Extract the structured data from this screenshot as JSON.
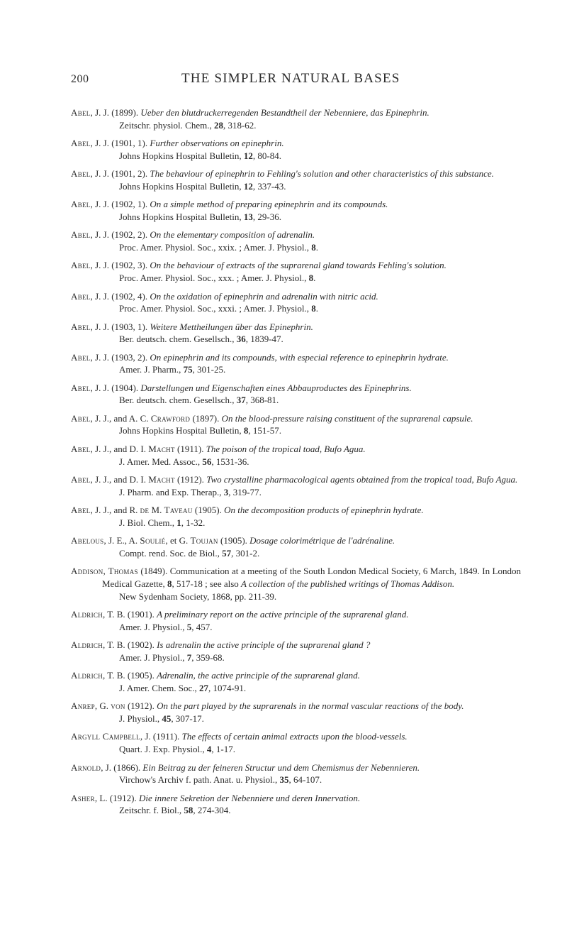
{
  "header": {
    "page_number": "200",
    "running_title": "THE SIMPLER NATURAL BASES"
  },
  "entries": [
    {
      "author_sc": "Abel",
      "rest": ", J. J. (1899). ",
      "italic": "Ueber den blutdruckerregenden Bestandtheil der Nebenniere, das Epinephrin.",
      "citation_pre": "Zeitschr. physiol. Chem., ",
      "citation_bold": "28",
      "citation_post": ", 318-62."
    },
    {
      "author_sc": "Abel",
      "rest": ", J. J. (1901, 1). ",
      "italic": "Further observations on epinephrin.",
      "citation_pre": "Johns Hopkins Hospital Bulletin, ",
      "citation_bold": "12",
      "citation_post": ", 80-84."
    },
    {
      "author_sc": "Abel",
      "rest": ", J. J. (1901, 2). ",
      "italic": "The behaviour of epinephrin to Fehling's solution and other characteristics of this substance.",
      "citation_pre": "Johns Hopkins Hospital Bulletin, ",
      "citation_bold": "12",
      "citation_post": ", 337-43."
    },
    {
      "author_sc": "Abel",
      "rest": ", J. J. (1902, 1). ",
      "italic": "On a simple method of preparing epinephrin and its compounds.",
      "citation_pre": "Johns Hopkins Hospital Bulletin, ",
      "citation_bold": "13",
      "citation_post": ", 29-36."
    },
    {
      "author_sc": "Abel",
      "rest": ", J.  J. (1902, 2). ",
      "italic": "On the elementary composition of adrenalin.",
      "citation_pre": "Proc. Amer. Physiol. Soc., xxix. ; Amer. J. Physiol., ",
      "citation_bold": "8",
      "citation_post": "."
    },
    {
      "author_sc": "Abel",
      "rest": ", J. J. (1902, 3). ",
      "italic": "On the behaviour of extracts of the suprarenal gland towards Fehling's solution.",
      "citation_pre": "Proc. Amer. Physiol. Soc., xxx. ; Amer. J. Physiol., ",
      "citation_bold": "8",
      "citation_post": "."
    },
    {
      "author_sc": "Abel",
      "rest": ", J. J. (1902, 4). ",
      "italic": "On the oxidation of epinephrin and adrenalin with nitric acid.",
      "citation_pre": "Proc. Amer. Physiol. Soc., xxxi. ; Amer. J. Physiol., ",
      "citation_bold": "8",
      "citation_post": "."
    },
    {
      "author_sc": "Abel",
      "rest": ", J. J. (1903, 1). ",
      "italic": "Weitere Mettheilungen über das Epinephrin.",
      "citation_pre": "Ber. deutsch. chem. Gesellsch., ",
      "citation_bold": "36",
      "citation_post": ", 1839-47."
    },
    {
      "author_sc": "Abel",
      "rest": ", J. J. (1903, 2). ",
      "italic": "On epinephrin and its compounds, with especial reference to epinephrin hydrate.",
      "citation_pre": "Amer. J. Pharm., ",
      "citation_bold": "75",
      "citation_post": ", 301-25."
    },
    {
      "author_sc": "Abel",
      "rest": ", J. J. (1904). ",
      "italic": "Darstellungen und Eigenschaften eines Abbauproductes des Epine­phrins.",
      "citation_pre": "Ber. deutsch. chem. Gesellsch., ",
      "citation_bold": "37",
      "citation_post": ", 368-81."
    },
    {
      "author_sc": "Abel",
      "rest": ", J. J., and A. C. ",
      "author2_sc": "Crawford",
      "rest2": " (1897). ",
      "italic": "On the blood-pressure raising constituent of the suprarenal capsule.",
      "citation_pre": "Johns Hopkins Hospital Bulletin, ",
      "citation_bold": "8",
      "citation_post": ", 151-57."
    },
    {
      "author_sc": "Abel",
      "rest": ", J. J., and D. I. ",
      "author2_sc": "Macht",
      "rest2": " (1911). ",
      "italic": "The poison of the tropical toad, Bufo Agua.",
      "citation_pre": "J. Amer. Med. Assoc., ",
      "citation_bold": "56",
      "citation_post": ", 1531-36."
    },
    {
      "author_sc": "Abel",
      "rest": ", J. J., and D. I. ",
      "author2_sc": "Macht",
      "rest2": " (1912). ",
      "italic": "Two crystalline pharmacological agents ob­tained from the tropical toad, Bufo Agua.",
      "citation_pre": "J. Pharm. and Exp. Therap., ",
      "citation_bold": "3",
      "citation_post": ", 319-77."
    },
    {
      "author_sc": "Abel",
      "rest": ", J. J., and R. ",
      "author2_sc": "de",
      "rest2": " M. ",
      "author3_sc": "Taveau",
      "rest3": " (1905). ",
      "italic": "On the decomposition products of epine­phrin hydrate.",
      "citation_pre": "J. Biol. Chem., ",
      "citation_bold": "1",
      "citation_post": ", 1-32."
    },
    {
      "author_sc": "Abelous",
      "rest": ", J. E., A. ",
      "author2_sc": "Soulié",
      "rest2": ", et G. ",
      "author3_sc": "Toujan",
      "rest3": " (1905). ",
      "italic": "Dosage colorimétrique de l'adrénaline.",
      "citation_pre": "Compt. rend. Soc. de Biol., ",
      "citation_bold": "57",
      "citation_post": ", 301-2."
    },
    {
      "author_sc": "Addison, Thomas",
      "rest": " (1849). Communication at a meeting of the South London Medical Society, 6 March, 1849. In London Medical Gazette, ",
      "bold_inline": "8",
      "rest_after_bold": ", 517-18 ; see also ",
      "italic": "A collection of the published writings of Thomas Addison.",
      "citation_pre": "New Sydenham Society, 1868, pp. 211-39.",
      "citation_bold": "",
      "citation_post": ""
    },
    {
      "author_sc": "Aldrich",
      "rest": ", T. B. (1901). ",
      "italic": "A preliminary report on the active principle of the suprarenal gland.",
      "citation_pre": "Amer. J. Physiol., ",
      "citation_bold": "5",
      "citation_post": ", 457."
    },
    {
      "author_sc": "Aldrich",
      "rest": ", T. B. (1902). ",
      "italic": "Is adrenalin the active principle of the suprarenal gland ?",
      "citation_pre": "Amer. J. Physiol., ",
      "citation_bold": "7",
      "citation_post": ", 359-68."
    },
    {
      "author_sc": "Aldrich",
      "rest": ", T. B. (1905). ",
      "italic": "Adrenalin, the active principle of the suprarenal gland.",
      "citation_pre": "J. Amer. Chem. Soc., ",
      "citation_bold": "27",
      "citation_post": ", 1074-91."
    },
    {
      "author_sc": "Anrep",
      "rest": ", G. ",
      "author2_sc": "von",
      "rest2": " (1912). ",
      "italic": "On the part played by the suprarenals in the normal vascular reactions of the body.",
      "citation_pre": "J. Physiol., ",
      "citation_bold": "45",
      "citation_post": ", 307-17."
    },
    {
      "author_sc": "Argyll Campbell",
      "rest": ", J. (1911). ",
      "italic": "The effects of certain animal extracts upon the blood-vessels.",
      "citation_pre": "Quart. J. Exp. Physiol., ",
      "citation_bold": "4",
      "citation_post": ", 1-17."
    },
    {
      "author_sc": "Arnold",
      "rest": ", J. (1866). ",
      "italic": "Ein Beitrag zu der feineren Structur und dem Chemismus der Nebennieren.",
      "citation_pre": "Virchow's Archiv f. path. Anat. u. Physiol., ",
      "citation_bold": "35",
      "citation_post": ", 64-107."
    },
    {
      "author_sc": "Asher",
      "rest": ", L. (1912). ",
      "italic": "Die innere Sekretion der Nebenniere und deren Innervation.",
      "citation_pre": "Zeitschr. f. Biol., ",
      "citation_bold": "58",
      "citation_post": ", 274-304."
    }
  ]
}
